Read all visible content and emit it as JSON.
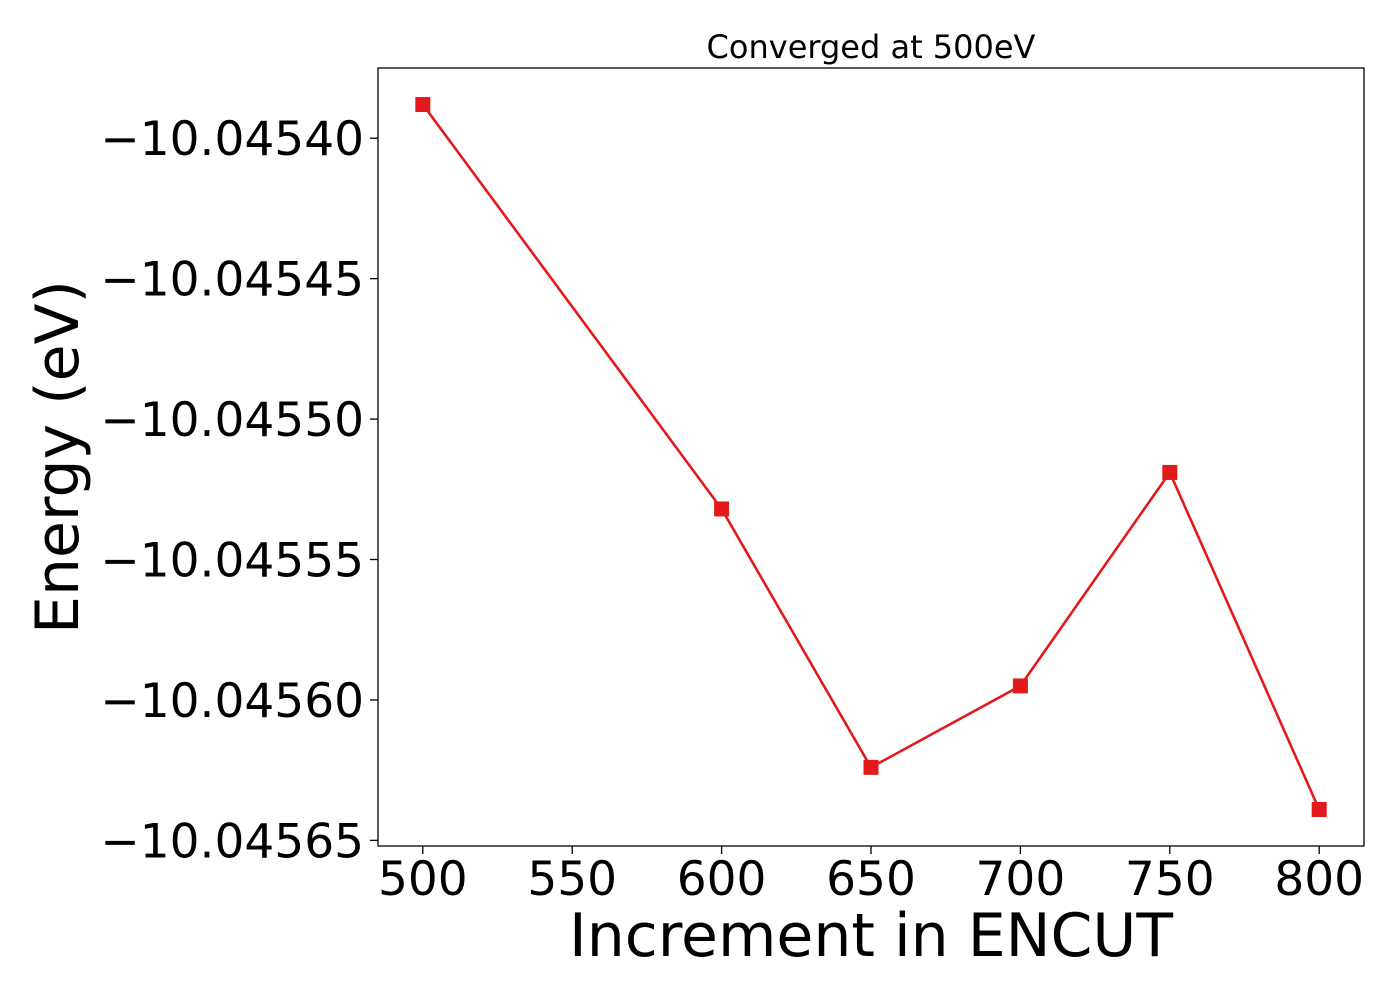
{
  "chart_data": {
    "type": "line",
    "title": "Converged at 500eV",
    "xlabel": "Increment in ENCUT",
    "ylabel": "Energy (eV)",
    "xlim": [
      485,
      815
    ],
    "ylim": [
      -10.045652,
      -10.045375
    ],
    "xticks": [
      500,
      550,
      600,
      650,
      700,
      750,
      800
    ],
    "xtick_labels": [
      "500",
      "550",
      "600",
      "650",
      "700",
      "750",
      "800"
    ],
    "yticks": [
      -10.0454,
      -10.04545,
      -10.0455,
      -10.04555,
      -10.0456,
      -10.04565
    ],
    "ytick_labels": [
      "−10.04540",
      "−10.04545",
      "−10.04550",
      "−10.04555",
      "−10.04560",
      "−10.04565"
    ],
    "grid": false,
    "legend": "none",
    "series": [
      {
        "color": "#e31a1c",
        "marker": "square",
        "x": [
          500,
          600,
          650,
          700,
          750,
          800
        ],
        "y": [
          -10.045388,
          -10.045532,
          -10.045624,
          -10.045595,
          -10.045519,
          -10.045639
        ]
      }
    ]
  }
}
